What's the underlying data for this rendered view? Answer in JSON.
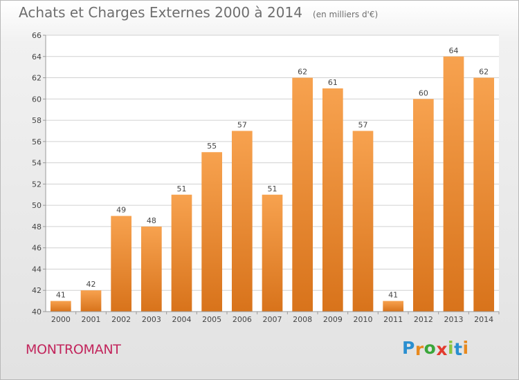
{
  "title": "Achats et Charges Externes 2000 à 2014",
  "title_unit": "(en milliers d'€)",
  "town": "MONTROMANT",
  "logo": {
    "text": "Proxiti",
    "letters": [
      "P",
      "r",
      "o",
      "x",
      "i",
      "t",
      "i"
    ],
    "colors": [
      "#2a8fd0",
      "#e8891e",
      "#3aa63a",
      "#e23a2e",
      "#8cc63f",
      "#2a8fd0",
      "#e8891e"
    ]
  },
  "colors": {
    "bar_top": "#f7a24f",
    "bar_bottom": "#d8731b",
    "grid": "#d0d0d0",
    "axis_text": "#444444"
  },
  "chart_data": {
    "type": "bar",
    "categories": [
      "2000",
      "2001",
      "2002",
      "2003",
      "2004",
      "2005",
      "2006",
      "2007",
      "2008",
      "2009",
      "2010",
      "2011",
      "2012",
      "2013",
      "2014"
    ],
    "values": [
      41,
      42,
      49,
      48,
      51,
      55,
      57,
      51,
      62,
      61,
      57,
      41,
      60,
      64,
      62
    ],
    "title": "Achats et Charges Externes 2000 à 2014",
    "ylim": [
      40,
      66
    ],
    "yticks": [
      40,
      42,
      44,
      46,
      48,
      50,
      52,
      54,
      56,
      58,
      60,
      62,
      64,
      66
    ],
    "grid": true,
    "legend": "none"
  }
}
